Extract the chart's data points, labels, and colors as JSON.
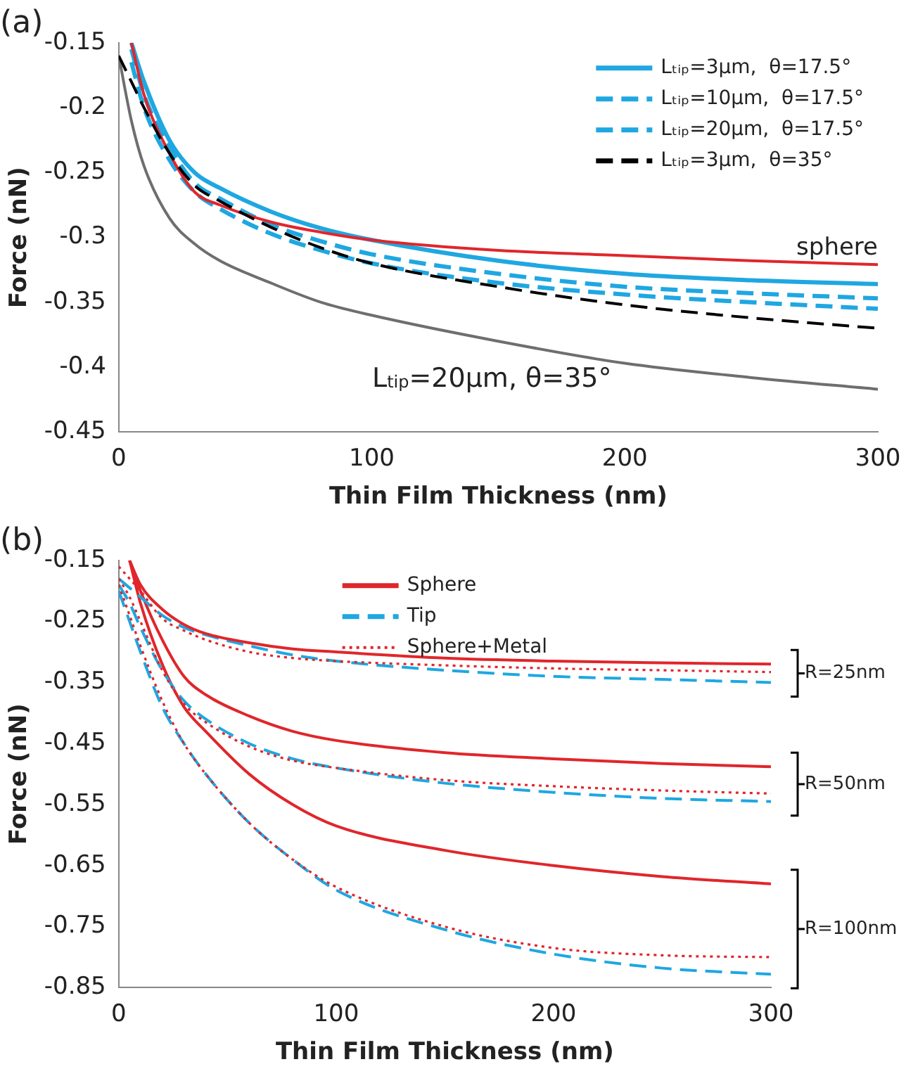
{
  "chart_data": [
    {
      "type": "line",
      "title": "(a)",
      "xlabel": "Thin Film Thickness (nm)",
      "ylabel": "Force (nN)",
      "x": [
        0,
        5,
        10,
        20,
        30,
        40,
        60,
        80,
        100,
        150,
        200,
        250,
        300
      ],
      "xlim": [
        0,
        300
      ],
      "xticks": [
        0,
        100,
        200,
        300
      ],
      "ylim": [
        -0.45,
        -0.15
      ],
      "yticks": [
        -0.45,
        -0.4,
        -0.35,
        -0.3,
        -0.25,
        -0.2,
        -0.15
      ],
      "legend": "top right",
      "marker": "none",
      "series": [
        {
          "name": "Lₜᵢₚ=3μm,  θ=17.5°",
          "color": "#1fa7e1",
          "line_style": "solid",
          "values": [
            null,
            -0.15,
            -0.18,
            -0.225,
            -0.25,
            -0.262,
            -0.28,
            -0.293,
            -0.302,
            -0.318,
            -0.328,
            -0.333,
            -0.336
          ]
        },
        {
          "name": "Lₜᵢₚ=10μm,  θ=17.5°",
          "color": "#1fa7e1",
          "line_style": "dashed",
          "values": [
            null,
            -0.155,
            -0.19,
            -0.23,
            -0.258,
            -0.27,
            -0.29,
            -0.303,
            -0.313,
            -0.328,
            -0.338,
            -0.343,
            -0.347
          ]
        },
        {
          "name": "Lₜᵢₚ=20μm,  θ=17.5°",
          "color": "#1fa7e1",
          "line_style": "dashed",
          "values": [
            null,
            -0.165,
            -0.2,
            -0.24,
            -0.265,
            -0.278,
            -0.297,
            -0.31,
            -0.32,
            -0.335,
            -0.344,
            -0.35,
            -0.355
          ]
        },
        {
          "name": "Lₜᵢₚ=3μm,  θ=35°",
          "color": "#000000",
          "line_style": "dashed",
          "values": [
            -0.16,
            -0.18,
            -0.2,
            -0.235,
            -0.26,
            -0.272,
            -0.292,
            -0.308,
            -0.32,
            -0.338,
            -0.352,
            -0.362,
            -0.37
          ]
        },
        {
          "color": "#e0262b",
          "line_style": "solid",
          "values": [
            null,
            -0.15,
            -0.19,
            -0.235,
            -0.265,
            -0.275,
            -0.288,
            -0.296,
            -0.302,
            -0.31,
            -0.314,
            -0.318,
            -0.321
          ]
        },
        {
          "color": "#6e6e6e",
          "line_style": "solid",
          "values": [
            -0.16,
            -0.21,
            -0.245,
            -0.285,
            -0.305,
            -0.318,
            -0.335,
            -0.35,
            -0.36,
            -0.38,
            -0.397,
            -0.408,
            -0.417
          ]
        }
      ],
      "annotations": [
        {
          "text": "sphere",
          "x": 300,
          "y": -0.321
        },
        {
          "text": "L$_{tip}$=20μm, θ=35°",
          "x": 150,
          "y": -0.38
        }
      ]
    },
    {
      "type": "line",
      "title": "(b)",
      "xlabel": "Thin Film Thickness (nm)",
      "ylabel": "Force (nN)",
      "x": [
        0,
        5,
        10,
        20,
        30,
        40,
        60,
        80,
        100,
        150,
        200,
        250,
        300
      ],
      "xlim": [
        0,
        300
      ],
      "xticks": [
        0,
        100,
        200,
        300
      ],
      "ylim": [
        -0.85,
        -0.15
      ],
      "yticks": [
        -0.85,
        -0.75,
        -0.65,
        -0.55,
        -0.45,
        -0.35,
        -0.25,
        -0.15
      ],
      "legend": "top",
      "marker": "none",
      "series": [
        {
          "name": "Sphere",
          "color": "#e0262b",
          "line_style": "solid",
          "values": [
            null,
            -0.15,
            -0.19,
            -0.23,
            -0.255,
            -0.27,
            -0.285,
            -0.295,
            -0.3,
            -0.31,
            -0.315,
            -0.318,
            -0.32
          ]
        },
        {
          "name": "Tip",
          "color": "#1fa7e1",
          "line_style": "dashed",
          "values": [
            -0.18,
            -0.195,
            -0.21,
            -0.24,
            -0.26,
            -0.272,
            -0.29,
            -0.305,
            -0.315,
            -0.33,
            -0.34,
            -0.345,
            -0.35
          ]
        },
        {
          "name": "Sphere+Metal",
          "color": "#e0262b",
          "line_style": "dotted",
          "values": [
            -0.16,
            -0.18,
            -0.2,
            -0.245,
            -0.265,
            -0.28,
            -0.3,
            -0.31,
            -0.315,
            -0.322,
            -0.327,
            -0.33,
            -0.333
          ]
        },
        {
          "color": "#e0262b",
          "line_style": "solid",
          "values": [
            null,
            -0.15,
            -0.2,
            -0.28,
            -0.34,
            -0.37,
            -0.405,
            -0.43,
            -0.445,
            -0.465,
            -0.475,
            -0.483,
            -0.488
          ]
        },
        {
          "color": "#1fa7e1",
          "line_style": "dashed",
          "values": [
            -0.19,
            -0.22,
            -0.26,
            -0.33,
            -0.38,
            -0.41,
            -0.45,
            -0.475,
            -0.49,
            -0.515,
            -0.53,
            -0.54,
            -0.545
          ]
        },
        {
          "color": "#e0262b",
          "line_style": "dotted",
          "values": [
            -0.18,
            -0.21,
            -0.25,
            -0.33,
            -0.385,
            -0.415,
            -0.455,
            -0.478,
            -0.49,
            -0.51,
            -0.52,
            -0.527,
            -0.532
          ]
        },
        {
          "color": "#e0262b",
          "line_style": "solid",
          "values": [
            null,
            -0.15,
            -0.22,
            -0.32,
            -0.39,
            -0.43,
            -0.5,
            -0.55,
            -0.585,
            -0.625,
            -0.65,
            -0.668,
            -0.68
          ]
        },
        {
          "color": "#1fa7e1",
          "line_style": "dashed",
          "values": [
            -0.2,
            -0.25,
            -0.3,
            -0.39,
            -0.45,
            -0.5,
            -0.58,
            -0.64,
            -0.69,
            -0.755,
            -0.795,
            -0.818,
            -0.828
          ]
        },
        {
          "color": "#e0262b",
          "line_style": "dotted",
          "values": [
            -0.19,
            -0.24,
            -0.29,
            -0.38,
            -0.45,
            -0.5,
            -0.58,
            -0.64,
            -0.685,
            -0.75,
            -0.785,
            -0.797,
            -0.8
          ]
        }
      ],
      "annotations": [
        "R=25nm",
        "R=50nm",
        "R=100nm"
      ]
    }
  ]
}
